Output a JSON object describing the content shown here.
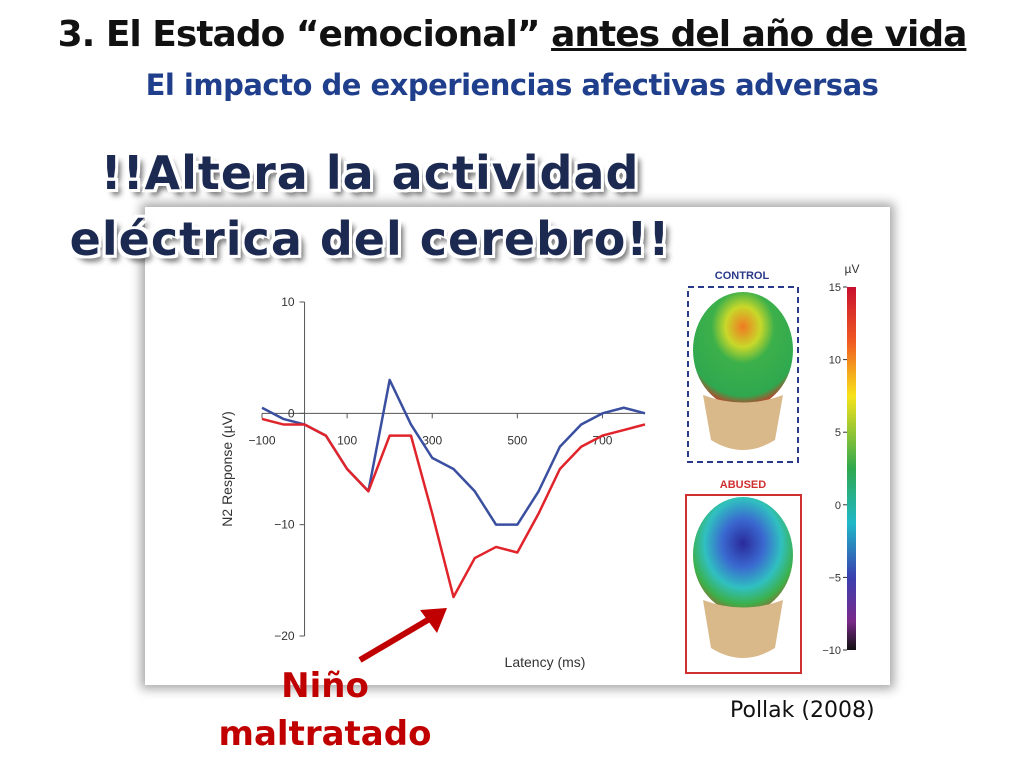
{
  "header": {
    "title": "3. El Estado “emocional”",
    "title_underlined": "antes del año de vida",
    "subtitle": "El impacto de experiencias afectivas adversas"
  },
  "callout": {
    "lines": [
      "!!Altera la actividad",
      "eléctrica del cerebro!!"
    ]
  },
  "annotation": {
    "lines": [
      "Niño",
      "maltratado"
    ]
  },
  "citation": "Pollak (2008)",
  "maps": {
    "labels": [
      "CONTROL",
      "ABUSED"
    ],
    "unit": "µV",
    "ticks": [
      15,
      10,
      5,
      0,
      {
        "value": -5,
        "label": "−5"
      },
      {
        "value": -10,
        "label": "−10"
      }
    ],
    "range": [
      -10,
      15
    ]
  },
  "chart_data": {
    "type": "line",
    "y_label": "N2 Response (µV)",
    "x_label": "Latency (ms)",
    "xlim": [
      -100,
      800
    ],
    "ylim": [
      -20,
      10
    ],
    "xticks": [
      {
        "value": -100,
        "label": "−100"
      },
      100,
      300,
      500,
      700
    ],
    "yticks": [
      10,
      0,
      {
        "value": -10,
        "label": "−10"
      },
      {
        "value": -20,
        "label": "−20"
      }
    ],
    "x": [
      -100,
      -50,
      0,
      50,
      100,
      150,
      200,
      250,
      300,
      350,
      400,
      450,
      500,
      550,
      600,
      650,
      700,
      750,
      800
    ],
    "series": [
      {
        "color": "#3a4fa0",
        "values": [
          0.5,
          -0.5,
          -1,
          -2,
          -5,
          -7,
          3,
          -1,
          -4,
          -5,
          -7,
          -10,
          -10,
          -7,
          -3,
          -1,
          0,
          0.5,
          0
        ]
      },
      {
        "color": "#e0242b",
        "values": [
          -0.5,
          -1,
          -1,
          -2,
          -5,
          -7,
          -2,
          -2,
          -9,
          -16.5,
          -13,
          -12,
          -12.5,
          -9,
          -5,
          -3,
          -2,
          -1.5,
          -1
        ]
      }
    ]
  }
}
